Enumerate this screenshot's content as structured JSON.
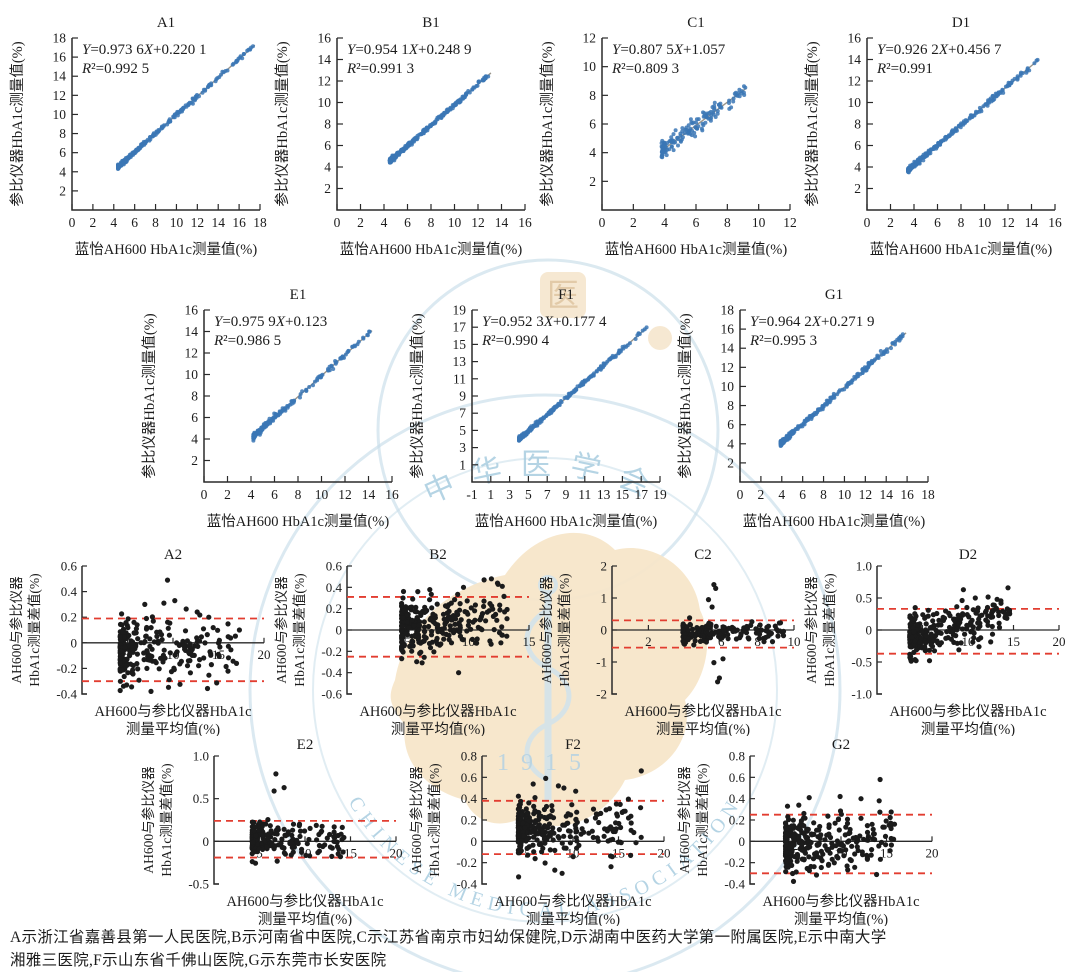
{
  "colors": {
    "point_blue": "#3b77b5",
    "point_black": "#1b1b1b",
    "regression_line": "#99948a",
    "loa_red": "#e23d30",
    "axis": "#2a2a2a",
    "watermark_tan": "#f7e6c9",
    "watermark_tan_dark": "#d9b98c",
    "watermark_blue": "#aacfe0"
  },
  "watermark": {
    "org_en": "CHINESE MEDICAL ASSOCIATION",
    "org_cn": "中华医学会",
    "year": "1915",
    "med_char": "医"
  },
  "axis_labels": {
    "reg_y": "参比仪器HbA1c测量值(%)",
    "reg_x": "蓝怡AH600 HbA1c测量值(%)",
    "ba_y1": "AH600与参比仪器",
    "ba_y2": "HbA1c测量差值(%)",
    "ba_x1": "AH600与参比仪器HbA1c",
    "ba_x2": "测量平均值(%)"
  },
  "caption": {
    "line1": "A示浙江省嘉善县第一人民医院,B示河南省中医院,C示江苏省南京市妇幼保健院,D示湖南中医药大学第一附属医院,E示中南大学",
    "line2": "湘雅三医院,F示山东省千佛山医院,G示东莞市长安医院"
  },
  "chart_data": [
    {
      "id": "A1",
      "type": "scatter",
      "title": "A1",
      "row": 0,
      "col": 0,
      "equation": "Y=0.973 6X+0.220 1",
      "slope": 0.9736,
      "slope_text": "0.973 6",
      "intercept": 0.2201,
      "intercept_text": "0.220 1",
      "r2_text": "0.992 5",
      "xlabel": "蓝怡AH600 HbA1c测量值(%)",
      "ylabel": "参比仪器HbA1c测量值(%)",
      "xlim": [
        0,
        18
      ],
      "ylim": [
        0,
        18
      ],
      "xticks": [
        0,
        2,
        4,
        6,
        8,
        10,
        12,
        14,
        16,
        18
      ],
      "xtick_labels": [
        "0",
        "2",
        "4",
        "6",
        "8",
        "10",
        "12",
        "14",
        "16",
        "18"
      ],
      "yticks": [
        2,
        4,
        6,
        8,
        10,
        12,
        14,
        16,
        18
      ],
      "ytick_labels": [
        "2",
        "4",
        "6",
        "8",
        "10",
        "12",
        "14",
        "16",
        "18"
      ],
      "data_x_range": [
        4.4,
        17.5
      ],
      "n": 300,
      "xpow": 3.0,
      "noise": 0.1
    },
    {
      "id": "B1",
      "type": "scatter",
      "title": "B1",
      "row": 0,
      "col": 1,
      "equation": "Y=0.954 1X+0.248 9",
      "slope": 0.9541,
      "slope_text": "0.954 1",
      "intercept": 0.2489,
      "intercept_text": "0.248 9",
      "r2_text": "0.991 3",
      "xlabel": "蓝怡AH600 HbA1c测量值(%)",
      "ylabel": "参比仪器HbA1c测量值(%)",
      "xlim": [
        0,
        16
      ],
      "ylim": [
        0,
        16
      ],
      "xticks": [
        0,
        2,
        4,
        6,
        8,
        10,
        12,
        14,
        16
      ],
      "xtick_labels": [
        "0",
        "2",
        "4",
        "6",
        "8",
        "10",
        "12",
        "14",
        "16"
      ],
      "yticks": [
        2,
        4,
        6,
        8,
        10,
        12,
        14,
        16
      ],
      "ytick_labels": [
        "2",
        "4",
        "6",
        "8",
        "10",
        "12",
        "14",
        "16"
      ],
      "data_x_range": [
        4.5,
        13.1
      ],
      "n": 330,
      "xpow": 2.6,
      "noise": 0.09
    },
    {
      "id": "C1",
      "type": "scatter",
      "title": "C1",
      "row": 0,
      "col": 2,
      "equation": "Y=0.807 5X+1.057",
      "slope": 0.8075,
      "slope_text": "0.807 5",
      "intercept": 1.057,
      "intercept_text": "1.057",
      "r2_text": "0.809 3",
      "xlabel": "蓝怡AH600 HbA1c测量值(%)",
      "ylabel": "参比仪器HbA1c测量值(%)",
      "xlim": [
        0,
        12
      ],
      "ylim": [
        0,
        12
      ],
      "xticks": [
        0,
        2,
        4,
        6,
        8,
        10,
        12
      ],
      "xtick_labels": [
        "0",
        "2",
        "4",
        "6",
        "8",
        "10",
        "12"
      ],
      "yticks": [
        2,
        4,
        6,
        8,
        10,
        12
      ],
      "ytick_labels": [
        "2",
        "4",
        "6",
        "8",
        "10",
        "12"
      ],
      "data_x_range": [
        3.8,
        9.2
      ],
      "n": 150,
      "xpow": 2.0,
      "noise": 0.3
    },
    {
      "id": "D1",
      "type": "scatter",
      "title": "D1",
      "row": 0,
      "col": 3,
      "equation": "Y=0.926 2X+0.456 7",
      "slope": 0.9262,
      "slope_text": "0.926 2",
      "intercept": 0.4567,
      "intercept_text": "0.456 7",
      "r2_text": "0.991",
      "xlabel": "蓝怡AH600 HbA1c测量值(%)",
      "ylabel": "参比仪器HbA1c测量值(%)",
      "xlim": [
        0,
        16
      ],
      "ylim": [
        0,
        16
      ],
      "xticks": [
        0,
        2,
        4,
        6,
        8,
        10,
        12,
        14,
        16
      ],
      "xtick_labels": [
        "0",
        "2",
        "4",
        "6",
        "8",
        "10",
        "12",
        "14",
        "16"
      ],
      "yticks": [
        2,
        4,
        6,
        8,
        10,
        12,
        14,
        16
      ],
      "ytick_labels": [
        "2",
        "4",
        "6",
        "8",
        "10",
        "12",
        "14",
        "16"
      ],
      "data_x_range": [
        3.5,
        14.6
      ],
      "n": 300,
      "xpow": 2.4,
      "noise": 0.11
    },
    {
      "id": "E1",
      "type": "scatter",
      "title": "E1",
      "row": 1,
      "col": 0,
      "equation": "Y=0.975 9X+0.123",
      "slope": 0.9759,
      "slope_text": "0.975 9",
      "intercept": 0.123,
      "intercept_text": "0.123",
      "r2_text": "0.986 5",
      "xlabel": "蓝怡AH600 HbA1c测量值(%)",
      "ylabel": "参比仪器HbA1c测量值(%)",
      "xlim": [
        0,
        16
      ],
      "ylim": [
        0,
        16
      ],
      "xticks": [
        0,
        2,
        4,
        6,
        8,
        10,
        12,
        14,
        16
      ],
      "xtick_labels": [
        "0",
        "2",
        "4",
        "6",
        "8",
        "10",
        "12",
        "14",
        "16"
      ],
      "yticks": [
        2,
        4,
        6,
        8,
        10,
        12,
        14,
        16
      ],
      "ytick_labels": [
        "2",
        "4",
        "6",
        "8",
        "10",
        "12",
        "14",
        "16"
      ],
      "data_x_range": [
        4.2,
        14.3
      ],
      "n": 210,
      "xpow": 2.6,
      "noise": 0.12
    },
    {
      "id": "F1",
      "type": "scatter",
      "title": "F1",
      "row": 1,
      "col": 1,
      "equation": "Y=0.952 3X+0.177 4",
      "slope": 0.9523,
      "slope_text": "0.952 3",
      "intercept": 0.1774,
      "intercept_text": "0.177 4",
      "r2_text": "0.990 4",
      "xlabel": "蓝怡AH600 HbA1c测量值(%)",
      "ylabel": "参比仪器HbA1c测量值(%)",
      "xlim": [
        -1,
        19
      ],
      "ylim": [
        -1,
        19
      ],
      "xticks": [
        -1,
        1,
        3,
        5,
        7,
        9,
        11,
        13,
        15,
        17,
        19
      ],
      "xtick_labels": [
        "-1",
        "1",
        "3",
        "5",
        "7",
        "9",
        "11",
        "13",
        "15",
        "17",
        "19"
      ],
      "yticks": [
        1,
        3,
        5,
        7,
        9,
        11,
        13,
        15,
        17,
        19
      ],
      "ytick_labels": [
        "1",
        "3",
        "5",
        "7",
        "9",
        "11",
        "13",
        "15",
        "17",
        "19"
      ],
      "data_x_range": [
        4.0,
        17.6
      ],
      "n": 300,
      "xpow": 2.8,
      "noise": 0.11
    },
    {
      "id": "G1",
      "type": "scatter",
      "title": "G1",
      "row": 1,
      "col": 2,
      "equation": "Y=0.964 2X+0.271 9",
      "slope": 0.9642,
      "slope_text": "0.964 2",
      "intercept": 0.2719,
      "intercept_text": "0.271 9",
      "r2_text": "0.995 3",
      "xlabel": "蓝怡AH600 HbA1c测量值(%)",
      "ylabel": "参比仪器HbA1c测量值(%)",
      "xlim": [
        0,
        18
      ],
      "ylim": [
        0,
        18
      ],
      "xticks": [
        0,
        2,
        4,
        6,
        8,
        10,
        12,
        14,
        16,
        18
      ],
      "xtick_labels": [
        "0",
        "2",
        "4",
        "6",
        "8",
        "10",
        "12",
        "14",
        "16",
        "18"
      ],
      "yticks": [
        2,
        4,
        6,
        8,
        10,
        12,
        14,
        16,
        18
      ],
      "ytick_labels": [
        "2",
        "4",
        "6",
        "8",
        "10",
        "12",
        "14",
        "16",
        "18"
      ],
      "data_x_range": [
        3.9,
        15.9
      ],
      "n": 280,
      "xpow": 2.4,
      "noise": 0.12
    },
    {
      "id": "A2",
      "type": "bland-altman",
      "title": "A2",
      "row": 2,
      "col": 0,
      "xlabel1": "AH600与参比仪器HbA1c",
      "xlabel2": "测量平均值(%)",
      "ylabel1": "AH600与参比仪器",
      "ylabel2": "HbA1c测量差值(%)",
      "xlim": [
        0,
        20
      ],
      "ylim": [
        -0.4,
        0.6
      ],
      "xticks": [
        5,
        10,
        15,
        20
      ],
      "xtick_labels": [
        "5",
        "10",
        "15",
        "20"
      ],
      "yticks": [
        0.6,
        0.4,
        0.2,
        0,
        -0.2,
        -0.4
      ],
      "ytick_labels": [
        "0.6",
        "0.4",
        "0.2",
        "0",
        "-0.2",
        "-0.4"
      ],
      "loa_upper": 0.19,
      "loa_lower": -0.3,
      "mean_bias": -0.055,
      "sd": 0.118,
      "data_x_range": [
        4.2,
        17.5
      ],
      "n": 260,
      "xpow": 2.8,
      "trend": 0,
      "outliers": [
        [
          9.4,
          0.49
        ],
        [
          10.2,
          0.33
        ],
        [
          9.0,
          0.31
        ],
        [
          17.3,
          0.1
        ],
        [
          6.9,
          0.3
        ],
        [
          4.9,
          -0.33
        ]
      ]
    },
    {
      "id": "B2",
      "type": "bland-altman",
      "title": "B2",
      "row": 2,
      "col": 1,
      "xlabel1": "AH600与参比仪器HbA1c",
      "xlabel2": "测量平均值(%)",
      "ylabel1": "AH600与参比仪器",
      "ylabel2": "HbA1c测量差值(%)",
      "xlim": [
        0,
        15
      ],
      "ylim": [
        -0.6,
        0.6
      ],
      "xticks": [
        5,
        10,
        15
      ],
      "xtick_labels": [
        "5",
        "10",
        "15"
      ],
      "yticks": [
        0.6,
        0.4,
        0.2,
        0,
        -0.2,
        -0.4,
        -0.6
      ],
      "ytick_labels": [
        "0.6",
        "0.4",
        "0.2",
        "0",
        "-0.2",
        "-0.4",
        "-0.6"
      ],
      "loa_upper": 0.31,
      "loa_lower": -0.25,
      "mean_bias": 0.03,
      "sd": 0.135,
      "data_x_range": [
        4.5,
        13.2
      ],
      "n": 310,
      "xpow": 2.4,
      "trend": 0.01,
      "outliers": [
        [
          11.3,
          0.47
        ],
        [
          11.9,
          0.48
        ],
        [
          12.4,
          0.44
        ],
        [
          12.8,
          0.41
        ],
        [
          9.6,
          0.4
        ],
        [
          9.2,
          -0.4
        ]
      ]
    },
    {
      "id": "C2",
      "type": "bland-altman",
      "title": "C2",
      "row": 2,
      "col": 2,
      "xlabel1": "AH600与参比仪器HbA1c",
      "xlabel2": "测量平均值(%)",
      "ylabel1": "AH600与参比仪器",
      "ylabel2": "HbA1c测量差值(%)",
      "xlim": [
        0,
        10
      ],
      "ylim": [
        -2,
        2
      ],
      "xticks": [
        2,
        4,
        6,
        8,
        10
      ],
      "xtick_labels": [
        "2",
        "4",
        "6",
        "8",
        "10"
      ],
      "yticks": [
        2,
        1,
        0,
        -1,
        -2
      ],
      "ytick_labels": [
        "2",
        "1",
        "0",
        "-1",
        "-2"
      ],
      "loa_upper": 0.3,
      "loa_lower": -0.55,
      "mean_bias": -0.1,
      "sd": 0.16,
      "data_x_range": [
        3.9,
        9.5
      ],
      "n": 170,
      "xpow": 1.8,
      "trend": 0,
      "outliers": [
        [
          5.6,
          1.42
        ],
        [
          5.7,
          1.3
        ],
        [
          5.3,
          0.95
        ],
        [
          5.5,
          0.72
        ],
        [
          6.1,
          -0.9
        ],
        [
          5.6,
          -1.02
        ],
        [
          5.9,
          -1.5
        ],
        [
          5.8,
          -1.62
        ],
        [
          8.6,
          0.12
        ],
        [
          7.4,
          0.1
        ],
        [
          9.2,
          0.22
        ]
      ]
    },
    {
      "id": "D2",
      "type": "bland-altman",
      "title": "D2",
      "row": 2,
      "col": 3,
      "xlabel1": "AH600与参比仪器HbA1c",
      "xlabel2": "测量平均值(%)",
      "ylabel1": "AH600与参比仪器",
      "ylabel2": "HbA1c测量差值(%)",
      "xlim": [
        0,
        20
      ],
      "ylim": [
        -1,
        1
      ],
      "xticks": [
        5,
        10,
        15,
        20
      ],
      "xtick_labels": [
        "5",
        "10",
        "15",
        "20"
      ],
      "yticks": [
        1,
        0.5,
        0,
        -0.5,
        -1
      ],
      "ytick_labels": [
        "1.0",
        "0.5",
        "0",
        "-0.5",
        "-1.0"
      ],
      "loa_upper": 0.33,
      "loa_lower": -0.37,
      "mean_bias": -0.02,
      "sd": 0.16,
      "data_x_range": [
        3.6,
        14.6
      ],
      "n": 280,
      "xpow": 2.3,
      "trend": 0.03,
      "outliers": [
        [
          9.5,
          0.63
        ],
        [
          14.4,
          0.66
        ],
        [
          4.3,
          -0.48
        ],
        [
          12.0,
          0.3
        ],
        [
          13.2,
          0.48
        ],
        [
          10.8,
          0.5
        ]
      ]
    },
    {
      "id": "E2",
      "type": "bland-altman",
      "title": "E2",
      "row": 3,
      "col": 0,
      "xlabel1": "AH600与参比仪器HbA1c",
      "xlabel2": "测量平均值(%)",
      "ylabel1": "AH600与参比仪器",
      "ylabel2": "HbA1c测量差值(%)",
      "xlim": [
        0,
        20
      ],
      "ylim": [
        -0.5,
        1
      ],
      "xticks": [
        5,
        10,
        15,
        20
      ],
      "xtick_labels": [
        "5",
        "10",
        "15",
        "20"
      ],
      "yticks": [
        1,
        0.5,
        0,
        -0.5
      ],
      "ytick_labels": [
        "1.0",
        "0.5",
        "0",
        "-0.5"
      ],
      "loa_upper": 0.24,
      "loa_lower": -0.19,
      "mean_bias": 0.025,
      "sd": 0.1,
      "data_x_range": [
        4.2,
        14.3
      ],
      "n": 190,
      "xpow": 2.6,
      "trend": 0,
      "outliers": [
        [
          6.8,
          0.79
        ],
        [
          6.6,
          0.59
        ],
        [
          7.7,
          0.63
        ],
        [
          13.9,
          -0.18
        ],
        [
          10.5,
          -0.17
        ],
        [
          12.7,
          0.08
        ]
      ]
    },
    {
      "id": "F2",
      "type": "bland-altman",
      "title": "F2",
      "row": 3,
      "col": 1,
      "xlabel1": "AH600与参比仪器HbA1c",
      "xlabel2": "测量平均值(%)",
      "ylabel1": "AH600与参比仪器",
      "ylabel2": "HbA1c测量差值(%)",
      "xlim": [
        0,
        20
      ],
      "ylim": [
        -0.4,
        0.8
      ],
      "xticks": [
        5,
        10,
        15,
        20
      ],
      "xtick_labels": [
        "5",
        "10",
        "15",
        "20"
      ],
      "yticks": [
        0.8,
        0.6,
        0.4,
        0.2,
        0,
        -0.2,
        -0.4
      ],
      "ytick_labels": [
        "0.8",
        "0.6",
        "0.4",
        "0.2",
        "0",
        "-0.2",
        "-0.4"
      ],
      "loa_upper": 0.38,
      "loa_lower": -0.12,
      "mean_bias": 0.13,
      "sd": 0.12,
      "data_x_range": [
        4.0,
        17.5
      ],
      "n": 300,
      "xpow": 3.0,
      "trend": 0,
      "outliers": [
        [
          17.5,
          0.66
        ],
        [
          7.0,
          0.59
        ],
        [
          8.4,
          0.52
        ],
        [
          9.0,
          0.5
        ],
        [
          8.0,
          -0.27
        ],
        [
          8.8,
          -0.3
        ],
        [
          10.3,
          0.47
        ]
      ]
    },
    {
      "id": "G2",
      "type": "bland-altman",
      "title": "G2",
      "row": 3,
      "col": 2,
      "xlabel1": "AH600与参比仪器HbA1c",
      "xlabel2": "测量平均值(%)",
      "ylabel1": "AH600与参比仪器",
      "ylabel2": "HbA1c测量差值(%)",
      "xlim": [
        0,
        20
      ],
      "ylim": [
        -0.4,
        0.8
      ],
      "xticks": [
        5,
        10,
        15,
        20
      ],
      "xtick_labels": [
        "5",
        "10",
        "15",
        "20"
      ],
      "yticks": [
        0.8,
        0.6,
        0.4,
        0.2,
        0,
        -0.2,
        -0.4
      ],
      "ytick_labels": [
        "0.8",
        "0.6",
        "0.4",
        "0.2",
        "0",
        "-0.2",
        "-0.4"
      ],
      "loa_upper": 0.25,
      "loa_lower": -0.3,
      "mean_bias": -0.025,
      "sd": 0.14,
      "data_x_range": [
        3.9,
        16.0
      ],
      "n": 280,
      "xpow": 2.3,
      "trend": 0.005,
      "outliers": [
        [
          14.3,
          0.58
        ],
        [
          9.9,
          0.42
        ],
        [
          6.5,
          0.41
        ],
        [
          12.2,
          0.4
        ],
        [
          14.2,
          0.38
        ],
        [
          15.5,
          0.12
        ]
      ]
    }
  ]
}
